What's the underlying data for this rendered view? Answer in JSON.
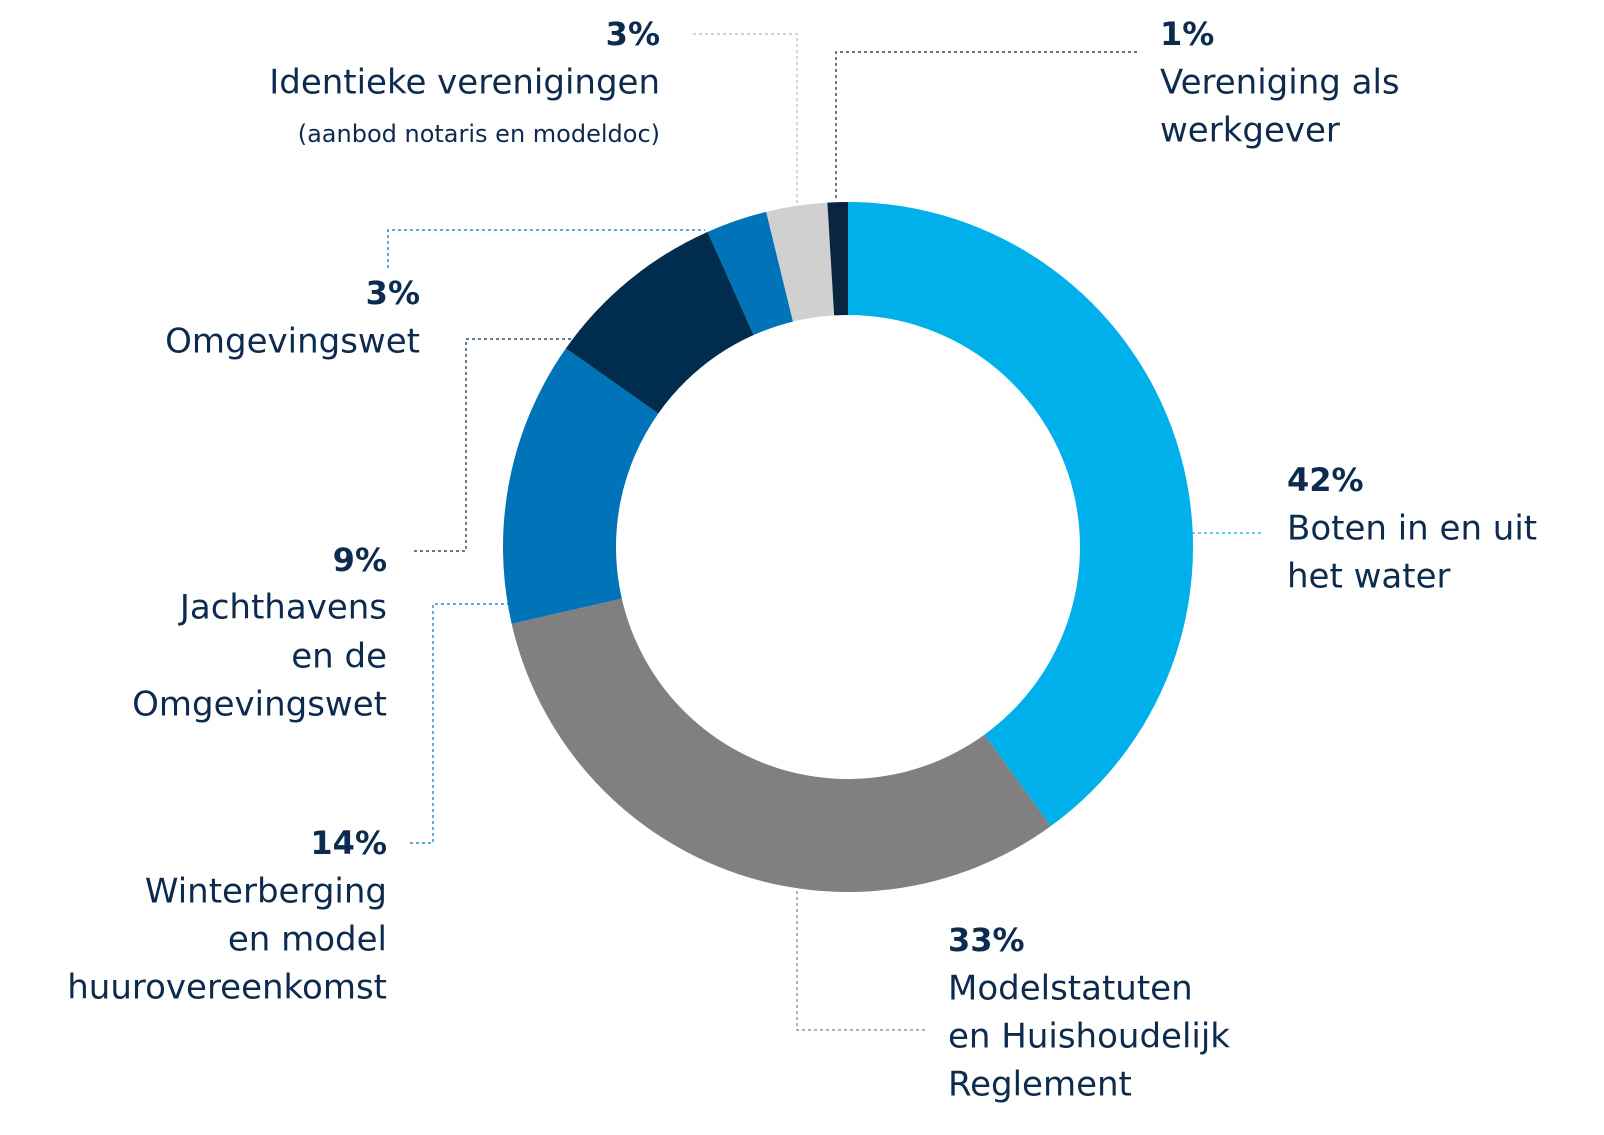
{
  "chart_data": {
    "type": "donut",
    "categories": [
      [
        "Boten in en uit",
        "het water"
      ],
      [
        "Modelstatuten",
        "en Huishoudelijk",
        "Reglement"
      ],
      [
        "Winterberging",
        "en model",
        "huurovereenkomst"
      ],
      [
        "Jachthavens",
        "en de",
        "Omgevingswet"
      ],
      [
        "Omgevingswet"
      ],
      [
        "Identieke verenigingen",
        "(aanbod notaris en modeldoc)"
      ],
      [
        "Vereniging als",
        "werkgever"
      ]
    ],
    "values": [
      42,
      33,
      14,
      9,
      3,
      3,
      1
    ],
    "value_labels": [
      "42%",
      "33%",
      "14%",
      "9%",
      "3%",
      "3%",
      "1%"
    ],
    "colors": [
      "#00b0ea",
      "#808080",
      "#0073b9",
      "#002d4d",
      "#0073b9",
      "#d0d0d0",
      "#0a2540"
    ]
  }
}
